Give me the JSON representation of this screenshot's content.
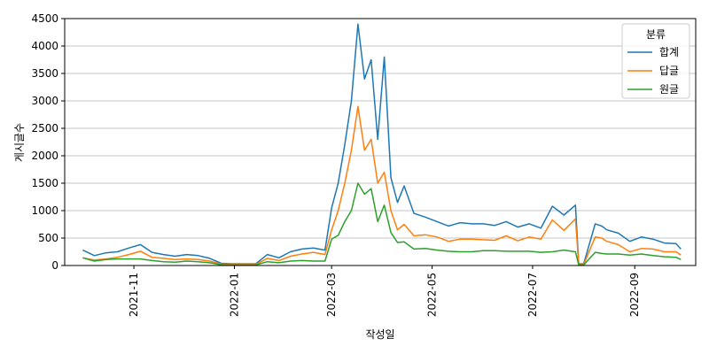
{
  "chart_data": {
    "type": "line",
    "title": "",
    "xlabel": "작성일",
    "ylabel": "게시글수",
    "xlim": [
      "2021-09-20",
      "2022-10-08"
    ],
    "ylim": [
      0,
      4500
    ],
    "yticks": [
      0,
      500,
      1000,
      1500,
      2000,
      2500,
      3000,
      3500,
      4000,
      4500
    ],
    "xticks": [
      {
        "date": "2021-11-01",
        "label": "2021-11"
      },
      {
        "date": "2022-01-01",
        "label": "2022-01"
      },
      {
        "date": "2022-03-01",
        "label": "2022-03"
      },
      {
        "date": "2022-05-01",
        "label": "2022-05"
      },
      {
        "date": "2022-07-01",
        "label": "2022-07"
      },
      {
        "date": "2022-09-01",
        "label": "2022-09"
      }
    ],
    "grid": "horizontal",
    "legend": {
      "title": "분류",
      "placement": "top-right"
    },
    "x": [
      "2021-10-01",
      "2021-10-08",
      "2021-10-15",
      "2021-10-22",
      "2021-10-29",
      "2021-11-05",
      "2021-11-12",
      "2021-11-19",
      "2021-11-26",
      "2021-12-03",
      "2021-12-10",
      "2021-12-17",
      "2021-12-24",
      "2021-12-31",
      "2022-01-07",
      "2022-01-14",
      "2022-01-21",
      "2022-01-28",
      "2022-02-04",
      "2022-02-11",
      "2022-02-18",
      "2022-02-25",
      "2022-03-01",
      "2022-03-05",
      "2022-03-09",
      "2022-03-13",
      "2022-03-17",
      "2022-03-21",
      "2022-03-25",
      "2022-03-29",
      "2022-04-02",
      "2022-04-06",
      "2022-04-10",
      "2022-04-14",
      "2022-04-20",
      "2022-04-27",
      "2022-05-04",
      "2022-05-11",
      "2022-05-18",
      "2022-05-25",
      "2022-06-01",
      "2022-06-08",
      "2022-06-15",
      "2022-06-22",
      "2022-06-29",
      "2022-07-06",
      "2022-07-13",
      "2022-07-20",
      "2022-07-27",
      "2022-07-29",
      "2022-08-01",
      "2022-08-08",
      "2022-08-12",
      "2022-08-15",
      "2022-08-22",
      "2022-08-29",
      "2022-09-05",
      "2022-09-12",
      "2022-09-19",
      "2022-09-26",
      "2022-09-29"
    ],
    "series": [
      {
        "name": "합계",
        "color": "#1f77b4",
        "values": [
          280,
          180,
          230,
          250,
          320,
          380,
          240,
          200,
          170,
          200,
          180,
          130,
          40,
          30,
          30,
          30,
          200,
          140,
          250,
          300,
          320,
          280,
          1050,
          1500,
          2200,
          3000,
          4400,
          3400,
          3750,
          2300,
          3800,
          1600,
          1150,
          1450,
          950,
          880,
          800,
          720,
          780,
          760,
          760,
          730,
          800,
          700,
          760,
          680,
          1080,
          920,
          1100,
          30,
          30,
          760,
          720,
          650,
          590,
          440,
          520,
          480,
          410,
          400,
          300
        ]
      },
      {
        "name": "답글",
        "color": "#ff7f0e",
        "values": [
          140,
          100,
          120,
          150,
          200,
          260,
          150,
          130,
          110,
          120,
          110,
          80,
          25,
          20,
          20,
          20,
          130,
          90,
          170,
          210,
          240,
          200,
          650,
          1000,
          1500,
          2100,
          2900,
          2100,
          2300,
          1500,
          1700,
          1000,
          650,
          750,
          540,
          560,
          520,
          440,
          480,
          480,
          470,
          460,
          540,
          450,
          520,
          480,
          830,
          640,
          850,
          20,
          20,
          520,
          500,
          440,
          380,
          250,
          310,
          300,
          250,
          250,
          190
        ]
      },
      {
        "name": "원글",
        "color": "#2ca02c",
        "values": [
          140,
          80,
          110,
          120,
          120,
          120,
          90,
          70,
          60,
          80,
          70,
          50,
          15,
          10,
          10,
          10,
          70,
          50,
          80,
          90,
          80,
          80,
          480,
          550,
          800,
          1000,
          1500,
          1300,
          1400,
          800,
          1100,
          600,
          420,
          430,
          300,
          310,
          280,
          260,
          250,
          250,
          270,
          270,
          260,
          260,
          260,
          240,
          250,
          280,
          250,
          10,
          10,
          240,
          220,
          210,
          210,
          190,
          210,
          180,
          160,
          150,
          110
        ]
      }
    ]
  }
}
